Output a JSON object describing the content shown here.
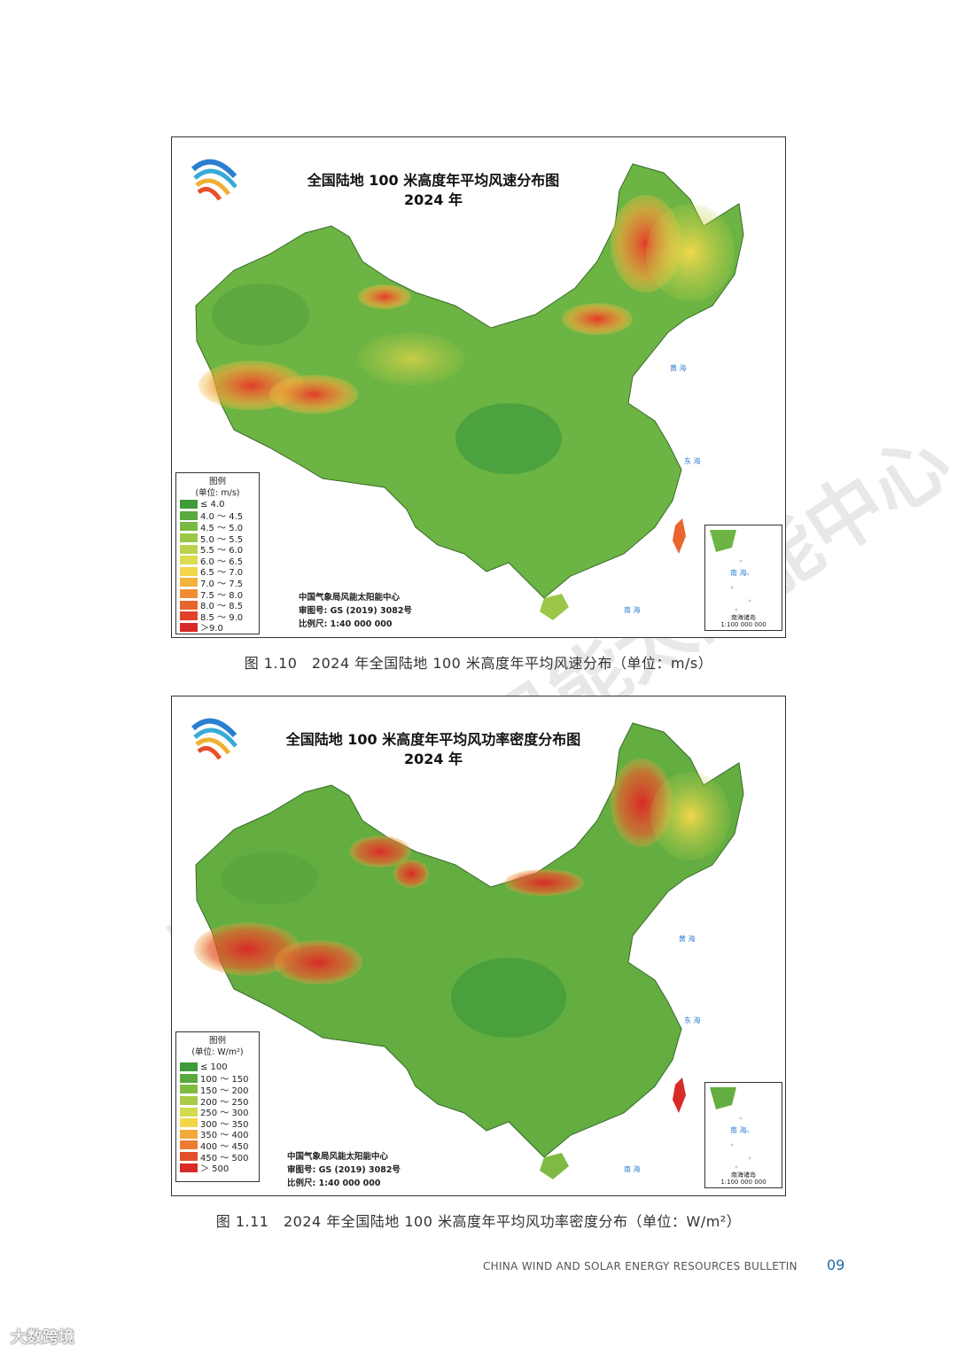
{
  "maps": [
    {
      "title": "全国陆地 100 米高度年平均风速分布图",
      "year": "2024 年",
      "legend_title": "图例",
      "legend_unit": "(单位: m/s)",
      "legend": [
        {
          "label": "≤ 4.0",
          "color": "#3f9a3c"
        },
        {
          "label": "4.0 ～ 4.5",
          "color": "#5aaa3e"
        },
        {
          "label": "4.5 ～ 5.0",
          "color": "#79b843"
        },
        {
          "label": "5.0 ～ 5.5",
          "color": "#9bc748"
        },
        {
          "label": "5.5 ～ 6.0",
          "color": "#bcd24c"
        },
        {
          "label": "6.0 ～ 6.5",
          "color": "#dbdc4f"
        },
        {
          "label": "6.5 ～ 7.0",
          "color": "#f2d64a"
        },
        {
          "label": "7.0 ～ 7.5",
          "color": "#f3b23c"
        },
        {
          "label": "7.5 ～ 8.0",
          "color": "#ef8c35"
        },
        {
          "label": "8.0 ～ 8.5",
          "color": "#e9652e"
        },
        {
          "label": "8.5 ～ 9.0",
          "color": "#e14229"
        },
        {
          "label": "＞9.0",
          "color": "#d82a26"
        }
      ],
      "credit_org": "中国气象局风能太阳能中心",
      "credit_review": "审图号: GS (2019) 3082号",
      "credit_scale": "比例尺: 1:40 000 000",
      "inset_sea": "南 海",
      "inset_label_1": "南海诸岛",
      "inset_label_2": "1:100 000 000",
      "sea_east": "东 海",
      "sea_south": "南 海",
      "sea_yellow": "黄 海"
    },
    {
      "title": "全国陆地 100 米高度年平均风功率密度分布图",
      "year": "2024 年",
      "legend_title": "图例",
      "legend_unit": "(单位: W/m²)",
      "legend": [
        {
          "label": "≤ 100",
          "color": "#3f9a3c"
        },
        {
          "label": "100 ～ 150",
          "color": "#5aaa3e"
        },
        {
          "label": "150 ～ 200",
          "color": "#7fbb44"
        },
        {
          "label": "200 ～ 250",
          "color": "#a8cb49"
        },
        {
          "label": "250 ～ 300",
          "color": "#d2da4e"
        },
        {
          "label": "300 ～ 350",
          "color": "#f2d64a"
        },
        {
          "label": "350 ～ 400",
          "color": "#f2a93a"
        },
        {
          "label": "400 ～ 450",
          "color": "#ec7c32"
        },
        {
          "label": "450 ～ 500",
          "color": "#e2502b"
        },
        {
          "label": "＞ 500",
          "color": "#d82a26"
        }
      ],
      "credit_org": "中国气象局风能太阳能中心",
      "credit_review": "审图号: GS (2019) 3082号",
      "credit_scale": "比例尺: 1:40 000 000",
      "inset_sea": "南 海",
      "inset_label_1": "南海诸岛",
      "inset_label_2": "1:100 000 000",
      "sea_east": "东 海",
      "sea_south": "南 海",
      "sea_yellow": "黄 海"
    }
  ],
  "captions": [
    "图 1.10　2024 年全国陆地 100 米高度年平均风速分布（单位：m/s）",
    "图 1.11　2024 年全国陆地 100 米高度年平均风功率密度分布（单位：W/m²）"
  ],
  "footer": {
    "bulletin": "CHINA WIND AND SOLAR ENERGY RESOURCES BULLETIN",
    "page": "09"
  },
  "watermark": "中国气象局风能太阳能中心",
  "brand": "大数跨境"
}
